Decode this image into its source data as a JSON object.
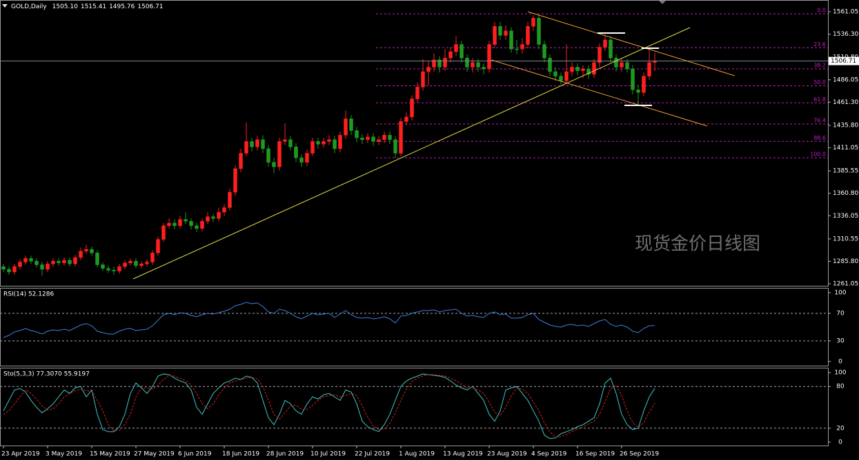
{
  "chart_data": {
    "type": "candlestick",
    "title": "GOLD,Daily",
    "ohlc_label": [
      "1505.10",
      "1515.41",
      "1495.76",
      "1506.71"
    ],
    "categories": [
      "23 Apr 2019",
      null,
      null,
      null,
      null,
      null,
      null,
      null,
      "3 May 2019",
      null,
      null,
      null,
      null,
      null,
      null,
      null,
      "15 May 2019",
      null,
      null,
      null,
      null,
      null,
      null,
      null,
      "27 May 2019",
      null,
      null,
      null,
      null,
      null,
      null,
      null,
      "6 Jun 2019",
      null,
      null,
      null,
      null,
      null,
      null,
      null,
      "18 Jun 2019",
      null,
      null,
      null,
      null,
      null,
      null,
      null,
      "28 Jun 2019",
      null,
      null,
      null,
      null,
      null,
      null,
      null,
      "10 Jul 2019",
      null,
      null,
      null,
      null,
      null,
      null,
      null,
      "22 Jul 2019",
      null,
      null,
      null,
      null,
      null,
      null,
      null,
      "1 Aug 2019",
      null,
      null,
      null,
      null,
      null,
      null,
      null,
      "13 Aug 2019",
      null,
      null,
      null,
      null,
      null,
      null,
      null,
      "23 Aug 2019",
      null,
      null,
      null,
      null,
      null,
      null,
      null,
      "4 Sep 2019",
      null,
      null,
      null,
      null,
      null,
      null,
      null,
      "16 Sep 2019",
      null,
      null,
      null,
      null,
      null,
      null,
      null,
      "26 Sep 2019",
      null,
      null,
      null,
      null,
      null,
      null
    ],
    "open": [
      1280,
      1277,
      1274,
      1280,
      1285,
      1289,
      1286,
      1282,
      1277,
      1283,
      1286,
      1284,
      1287,
      1283,
      1290,
      1297,
      1299,
      1295,
      1282,
      1278,
      1276,
      1275,
      1280,
      1284,
      1286,
      1281,
      1283,
      1285,
      1295,
      1310,
      1325,
      1328,
      1325,
      1332,
      1330,
      1325,
      1322,
      1330,
      1335,
      1333,
      1340,
      1345,
      1362,
      1388,
      1405,
      1418,
      1412,
      1420,
      1410,
      1395,
      1390,
      1418,
      1420,
      1412,
      1400,
      1395,
      1405,
      1418,
      1415,
      1418,
      1420,
      1410,
      1425,
      1443,
      1430,
      1422,
      1420,
      1423,
      1418,
      1420,
      1425,
      1420,
      1405,
      1440,
      1445,
      1465,
      1478,
      1495,
      1500,
      1508,
      1500,
      1510,
      1517,
      1525,
      1510,
      1500,
      1505,
      1500,
      1498,
      1525,
      1545,
      1535,
      1540,
      1520,
      1520,
      1525,
      1545,
      1554,
      1525,
      1510,
      1495,
      1490,
      1485,
      1495,
      1500,
      1496,
      1498,
      1492,
      1505,
      1522,
      1530,
      1510,
      1500,
      1505,
      1498,
      1475,
      1472,
      1490,
      1505.1
    ],
    "high": [
      1283,
      1280,
      1283,
      1288,
      1292,
      1292,
      1289,
      1285,
      1286,
      1289,
      1289,
      1290,
      1290,
      1293,
      1301,
      1304,
      1302,
      1298,
      1285,
      1281,
      1280,
      1283,
      1287,
      1289,
      1289,
      1286,
      1288,
      1298,
      1313,
      1328,
      1333,
      1332,
      1336,
      1340,
      1333,
      1328,
      1333,
      1340,
      1338,
      1345,
      1349,
      1366,
      1392,
      1410,
      1439,
      1422,
      1424,
      1425,
      1414,
      1400,
      1422,
      1438,
      1424,
      1416,
      1404,
      1409,
      1422,
      1422,
      1422,
      1425,
      1424,
      1429,
      1452,
      1447,
      1434,
      1426,
      1427,
      1427,
      1424,
      1429,
      1429,
      1424,
      1444,
      1450,
      1469,
      1483,
      1509,
      1506,
      1515,
      1512,
      1520,
      1522,
      1534,
      1529,
      1514,
      1510,
      1509,
      1504,
      1529,
      1550,
      1550,
      1546,
      1544,
      1530,
      1532,
      1550,
      1557,
      1558,
      1529,
      1514,
      1500,
      1494,
      1525,
      1505,
      1504,
      1502,
      1502,
      1509,
      1526,
      1536,
      1534,
      1514,
      1509,
      1509,
      1502,
      1480,
      1494,
      1520,
      1515.41
    ],
    "low": [
      1274,
      1271,
      1271,
      1277,
      1282,
      1283,
      1279,
      1270,
      1274,
      1280,
      1281,
      1281,
      1280,
      1280,
      1287,
      1294,
      1292,
      1279,
      1275,
      1273,
      1271,
      1272,
      1277,
      1281,
      1278,
      1278,
      1280,
      1282,
      1292,
      1307,
      1322,
      1321,
      1322,
      1327,
      1321,
      1318,
      1319,
      1327,
      1329,
      1330,
      1336,
      1342,
      1358,
      1384,
      1402,
      1407,
      1408,
      1405,
      1390,
      1383,
      1386,
      1414,
      1408,
      1395,
      1390,
      1391,
      1402,
      1410,
      1411,
      1414,
      1405,
      1406,
      1421,
      1425,
      1417,
      1415,
      1416,
      1413,
      1414,
      1416,
      1415,
      1400,
      1402,
      1436,
      1441,
      1461,
      1474,
      1480,
      1495,
      1494,
      1496,
      1505,
      1512,
      1505,
      1495,
      1494,
      1495,
      1492,
      1494,
      1521,
      1530,
      1530,
      1516,
      1514,
      1515,
      1521,
      1540,
      1520,
      1505,
      1490,
      1485,
      1481,
      1481,
      1490,
      1491,
      1488,
      1487,
      1488,
      1500,
      1518,
      1505,
      1495,
      1495,
      1494,
      1470,
      1458,
      1468,
      1486,
      1495.76
    ],
    "close": [
      1277,
      1274,
      1280,
      1285,
      1289,
      1286,
      1282,
      1277,
      1283,
      1286,
      1284,
      1287,
      1283,
      1290,
      1297,
      1299,
      1295,
      1282,
      1278,
      1276,
      1275,
      1280,
      1284,
      1286,
      1281,
      1283,
      1285,
      1295,
      1310,
      1325,
      1328,
      1325,
      1332,
      1330,
      1325,
      1322,
      1330,
      1335,
      1333,
      1340,
      1345,
      1362,
      1388,
      1405,
      1418,
      1412,
      1420,
      1410,
      1395,
      1390,
      1418,
      1420,
      1412,
      1400,
      1395,
      1405,
      1418,
      1415,
      1418,
      1420,
      1410,
      1425,
      1443,
      1430,
      1422,
      1420,
      1423,
      1418,
      1420,
      1425,
      1420,
      1405,
      1440,
      1445,
      1465,
      1478,
      1495,
      1500,
      1508,
      1500,
      1510,
      1517,
      1525,
      1510,
      1500,
      1505,
      1500,
      1498,
      1525,
      1545,
      1535,
      1540,
      1520,
      1520,
      1525,
      1545,
      1554,
      1525,
      1510,
      1495,
      1490,
      1485,
      1495,
      1500,
      1496,
      1498,
      1492,
      1505,
      1522,
      1530,
      1510,
      1500,
      1505,
      1498,
      1475,
      1472,
      1490,
      1505.1,
      1506.71
    ],
    "up_color": "#ff1f1f",
    "down_color": "#1f9a1f",
    "ylim": [
      1258.8,
      1572.5
    ],
    "yticks": [
      1561.05,
      {
        "value": 1536.3,
        "label": "1536.30"
      },
      {
        "value": 1510.8,
        "label": "1510.80"
      },
      1486.05,
      {
        "value": 1461.3,
        "label": "1461.30"
      },
      {
        "value": 1435.8,
        "label": "1435.80"
      },
      1411.05,
      1385.55,
      {
        "value": 1360.8,
        "label": "1360.80"
      },
      1336.05,
      1310.55,
      {
        "value": 1285.8,
        "label": "1285.80"
      },
      1261.05
    ],
    "last_price": 1506.71,
    "fib_color": "#c020c0",
    "fib_levels": [
      {
        "value": 1558.8,
        "label": "0.0"
      },
      {
        "value": 1521.3,
        "label": "23.6"
      },
      {
        "value": 1498.1,
        "label": "38.2"
      },
      {
        "value": 1479.4,
        "label": "50.0"
      },
      {
        "value": 1460.6,
        "label": "61.8"
      },
      {
        "value": 1437.3,
        "label": "76.4"
      },
      {
        "value": 1418.1,
        "label": "88.6"
      },
      {
        "value": 1400.0,
        "label": "100.0"
      }
    ],
    "watermark": "现货金价日线图",
    "indicators": [
      {
        "type": "line",
        "title": "RSI(14) 52.1286",
        "ylim": [
          -6,
          106
        ],
        "yticks": [
          100,
          70,
          30,
          0
        ],
        "levels": [
          70,
          30
        ],
        "series": [
          {
            "color": "#3f7fe0",
            "dashed": false,
            "values": [
              35,
              38,
              43,
              45,
              48,
              45,
              43,
              40,
              44,
              46,
              45,
              47,
              45,
              49,
              53,
              55,
              52,
              44,
              42,
              40,
              40,
              44,
              47,
              48,
              45,
              46,
              47,
              52,
              60,
              68,
              70,
              68,
              71,
              70,
              67,
              65,
              68,
              70,
              69,
              71,
              73,
              76,
              81,
              83,
              86,
              84,
              85,
              80,
              72,
              70,
              76,
              74,
              70,
              65,
              62,
              66,
              70,
              68,
              69,
              70,
              64,
              69,
              74,
              68,
              64,
              63,
              64,
              62,
              63,
              65,
              62,
              56,
              66,
              67,
              70,
              72,
              74,
              74,
              75,
              72,
              74,
              75,
              76,
              70,
              66,
              67,
              65,
              64,
              70,
              72,
              68,
              69,
              63,
              63,
              64,
              68,
              70,
              61,
              57,
              53,
              51,
              50,
              53,
              54,
              52,
              53,
              51,
              55,
              59,
              61,
              54,
              51,
              53,
              50,
              44,
              42,
              48,
              52,
              52.1286
            ]
          }
        ]
      },
      {
        "type": "line",
        "title": "Sto(5,3,3) 77.3070 55.9197",
        "ylim": [
          -5,
          106
        ],
        "yticks": [
          100,
          80,
          20,
          0
        ],
        "levels": [
          80,
          20
        ],
        "series": [
          {
            "color": "#40c8c8",
            "dashed": false,
            "values": [
              45,
              60,
              75,
              77,
              72,
              60,
              50,
              42,
              48,
              55,
              65,
              75,
              70,
              78,
              80,
              65,
              75,
              40,
              18,
              15,
              15,
              22,
              40,
              70,
              85,
              78,
              70,
              80,
              95,
              98,
              97,
              92,
              88,
              85,
              75,
              50,
              40,
              55,
              70,
              78,
              85,
              88,
              92,
              90,
              95,
              93,
              85,
              60,
              35,
              25,
              40,
              60,
              55,
              45,
              40,
              55,
              65,
              62,
              68,
              70,
              65,
              60,
              75,
              72,
              55,
              30,
              22,
              18,
              15,
              25,
              40,
              60,
              80,
              88,
              92,
              95,
              98,
              97,
              96,
              95,
              93,
              88,
              82,
              78,
              75,
              80,
              70,
              60,
              40,
              30,
              45,
              75,
              78,
              80,
              70,
              60,
              45,
              30,
              10,
              5,
              6,
              12,
              15,
              18,
              22,
              25,
              30,
              35,
              55,
              85,
              92,
              70,
              40,
              25,
              18,
              20,
              45,
              65,
              77.307
            ]
          },
          {
            "color": "#e02020",
            "dashed": true,
            "values": [
              40,
              45,
              55,
              65,
              75,
              70,
              62,
              52,
              46,
              48,
              55,
              65,
              70,
              74,
              76,
              74,
              73,
              60,
              45,
              25,
              16,
              17,
              25,
              40,
              65,
              78,
              78,
              76,
              82,
              90,
              96,
              95,
              92,
              88,
              82,
              70,
              55,
              48,
              55,
              68,
              78,
              85,
              88,
              90,
              92,
              93,
              91,
              80,
              60,
              40,
              33,
              42,
              52,
              53,
              47,
              47,
              53,
              60,
              65,
              67,
              68,
              65,
              67,
              70,
              67,
              52,
              36,
              23,
              18,
              19,
              27,
              42,
              60,
              76,
              87,
              92,
              95,
              97,
              97,
              96,
              95,
              92,
              88,
              83,
              78,
              78,
              75,
              70,
              57,
              43,
              38,
              50,
              66,
              78,
              76,
              70,
              58,
              45,
              28,
              15,
              7,
              8,
              11,
              15,
              18,
              22,
              26,
              30,
              40,
              58,
              77,
              82,
              67,
              45,
              28,
              21,
              28,
              43,
              55.9197
            ]
          }
        ]
      }
    ]
  }
}
